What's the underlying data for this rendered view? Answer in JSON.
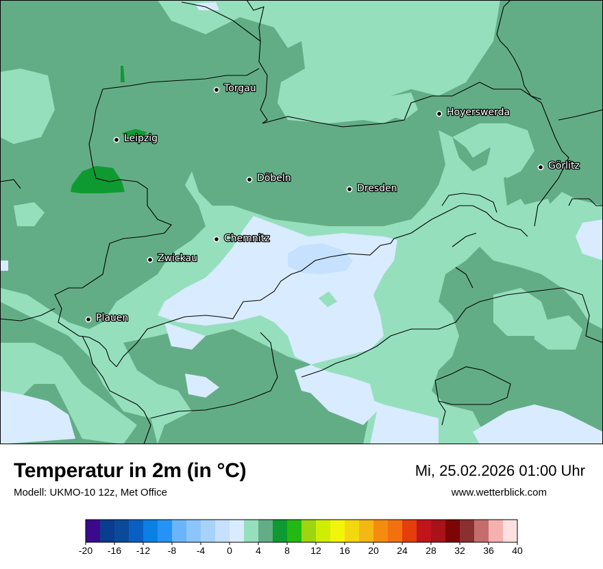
{
  "title": "Temperatur in 2m (in °C)",
  "model": "Modell: UKMO-10 12z, Met Office",
  "datetime": "Mi, 25.02.2026 01:00 Uhr",
  "website": "www.wetterblick.com",
  "cities": [
    {
      "name": "Torgau"
    },
    {
      "name": "Hoyerswerda"
    },
    {
      "name": "Leipzig"
    },
    {
      "name": "Görlitz"
    },
    {
      "name": "Döbeln"
    },
    {
      "name": "Dresden"
    },
    {
      "name": "Chemnitz"
    },
    {
      "name": "Zwickau"
    },
    {
      "name": "Plauen"
    }
  ],
  "legend": {
    "min": -20,
    "max": 40,
    "step": 2,
    "tick_labels": [
      "-20",
      "-16",
      "-12",
      "-8",
      "-4",
      "0",
      "4",
      "8",
      "12",
      "16",
      "20",
      "24",
      "28",
      "32",
      "36",
      "40"
    ],
    "colors": [
      "#3b0a8c",
      "#0a3c8f",
      "#0b4a9a",
      "#0a60c2",
      "#0a7fe6",
      "#2493f5",
      "#6ab5fa",
      "#8cc5fa",
      "#a7d3fb",
      "#c5e1fd",
      "#d9ebfe",
      "#95dfbd",
      "#63ad86",
      "#0f9a31",
      "#22b912",
      "#9bd610",
      "#cfee05",
      "#f2f40c",
      "#f3d70f",
      "#f4b814",
      "#f58c0f",
      "#f3700f",
      "#e53d0b",
      "#c0151a",
      "#a81218",
      "#7c0505",
      "#8c2f2f",
      "#c56d6d",
      "#f4b1ae",
      "#fde1e1"
    ]
  }
}
